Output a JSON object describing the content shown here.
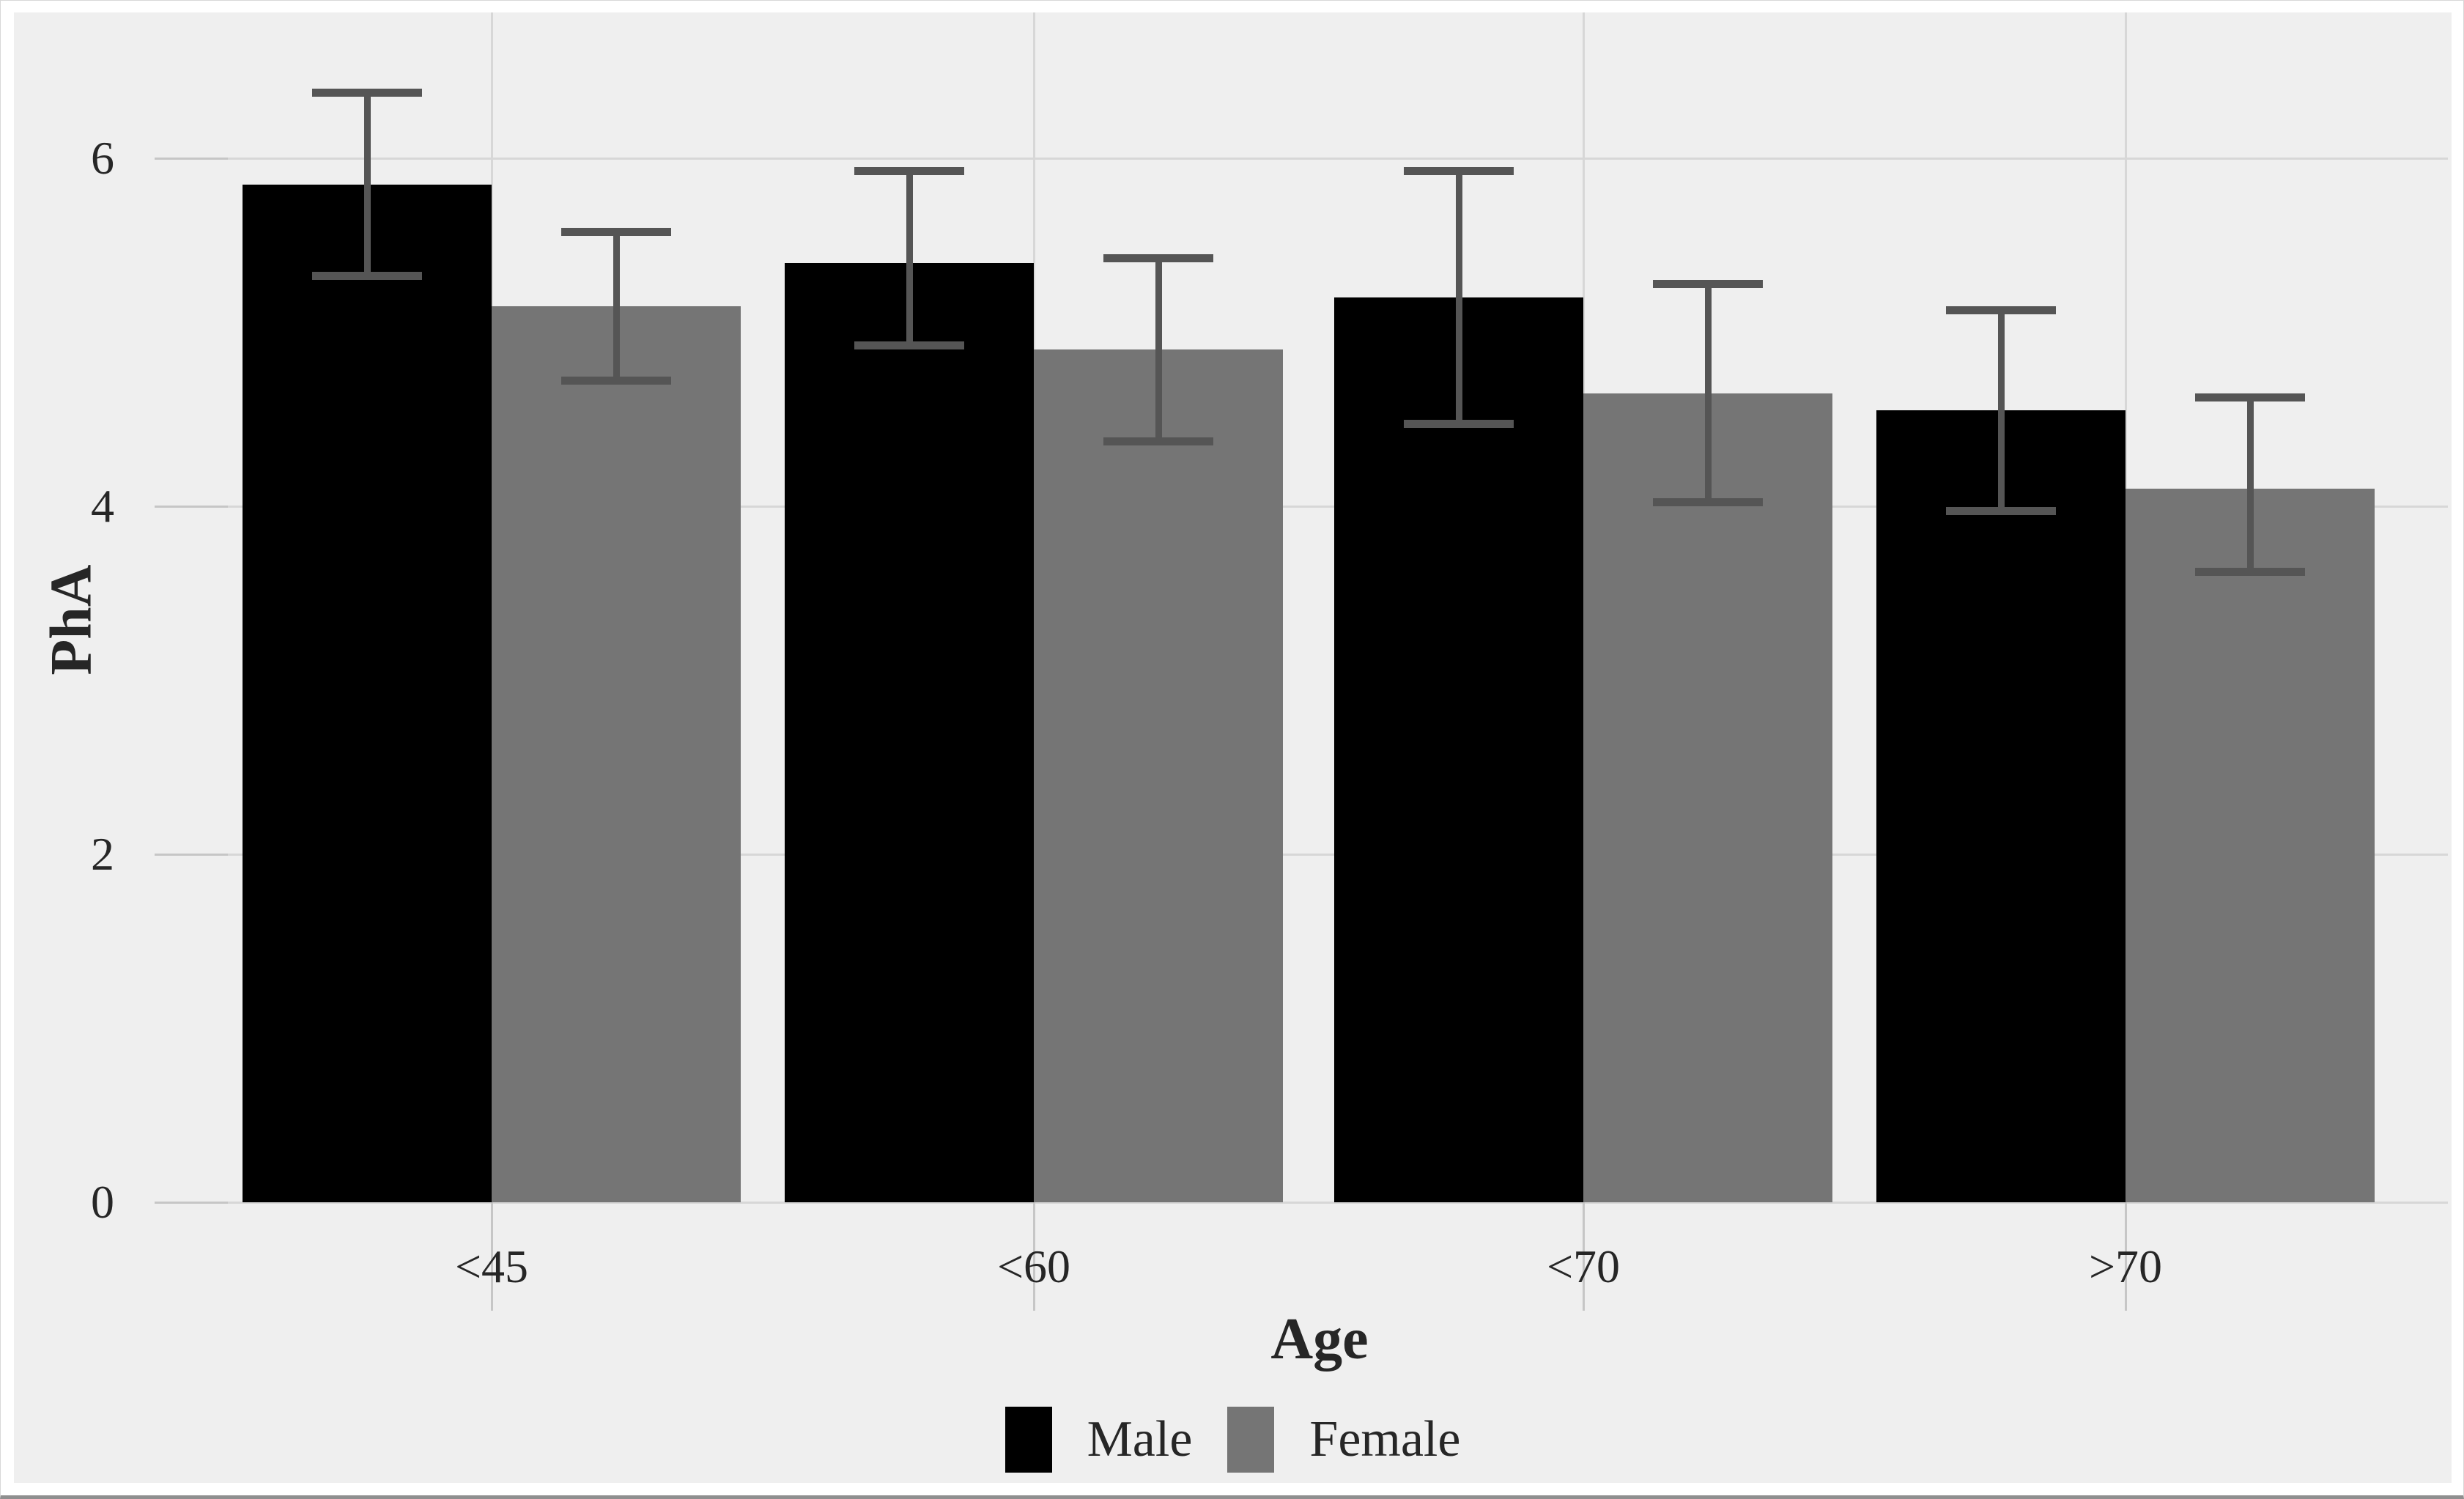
{
  "figure_title": "",
  "colors": {
    "panel_background": "#efefef",
    "outer_background": "#ffffff",
    "gridline": "#d7d7d7",
    "tick_mark": "#c6c6c6",
    "error_bar": "#555555",
    "text": "#262626",
    "male_bar": "#000000",
    "female_bar": "#757575"
  },
  "chart_data": {
    "type": "bar",
    "title": "",
    "xlabel": "Age",
    "ylabel": "PhA",
    "categories": [
      "<45",
      "<60",
      "<70",
      ">70"
    ],
    "series": [
      {
        "name": "Male",
        "color": "#000000",
        "values": [
          5.85,
          5.4,
          5.2,
          4.55
        ],
        "error_low": [
          5.3,
          4.9,
          4.45,
          3.95
        ],
        "error_high": [
          6.4,
          5.95,
          5.95,
          5.15
        ]
      },
      {
        "name": "Female",
        "color": "#757575",
        "values": [
          5.15,
          4.9,
          4.65,
          4.1
        ],
        "error_low": [
          4.7,
          4.35,
          4.0,
          3.6
        ],
        "error_high": [
          5.6,
          5.45,
          5.3,
          4.65
        ]
      }
    ],
    "y_ticks": [
      0,
      2,
      4,
      6
    ],
    "ylim": [
      0,
      6.85
    ],
    "grid": true,
    "grid_style": "horizontal major at y ticks, vertical major at group centers",
    "legend_position": "bottom-center",
    "error_bars": "symmetric caps, drawn over bars"
  }
}
